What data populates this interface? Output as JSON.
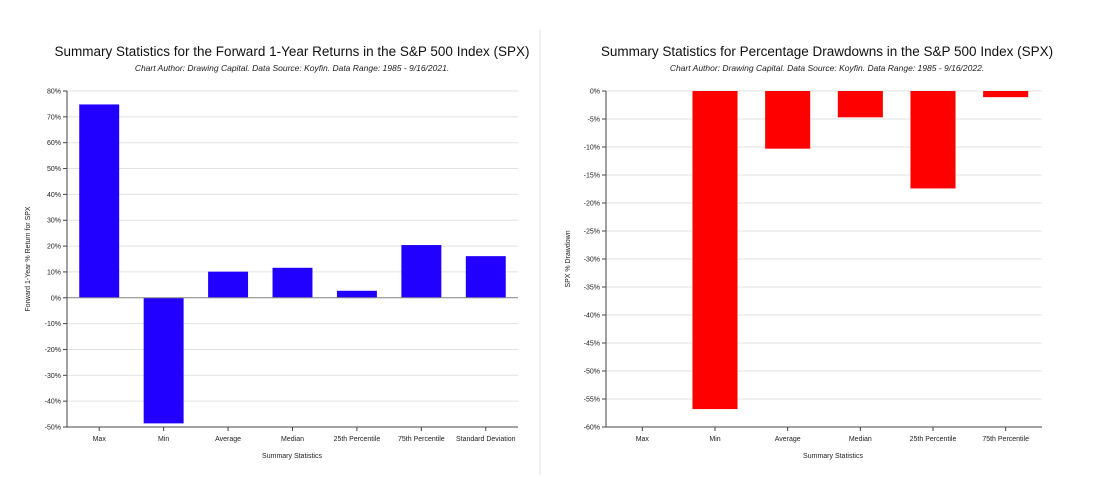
{
  "chart_data": [
    {
      "type": "bar",
      "title": "Summary Statistics for the Forward 1-Year Returns in the S&P 500 Index (SPX)",
      "subtitle": "Chart Author: Drawing Capital. Data Source: Koyfin. Data Range: 1985 - 9/16/2021.",
      "xlabel": "Summary Statistics",
      "ylabel": "Forward 1-Year % Return for SPX",
      "categories": [
        "Max",
        "Min",
        "Average",
        "Median",
        "25th Percentile",
        "75th Percentile",
        "Standard Deviation"
      ],
      "values": [
        74.8,
        -48.6,
        10.1,
        11.6,
        2.7,
        20.4,
        16.1
      ],
      "ylim": [
        -50,
        80
      ],
      "yticks": [
        80,
        70,
        60,
        50,
        40,
        30,
        20,
        10,
        0,
        -10,
        -20,
        -30,
        -40,
        -50
      ],
      "ytick_labels": [
        "80%",
        "70%",
        "60%",
        "50%",
        "40%",
        "30%",
        "20%",
        "10%",
        "0%",
        "-10%",
        "-20%",
        "-30%",
        "-40%",
        "-50%"
      ],
      "color": "#2200ff",
      "grid": true
    },
    {
      "type": "bar",
      "title": "Summary Statistics for Percentage Drawdowns in the S&P 500 Index (SPX)",
      "subtitle": "Chart Author: Drawing Capital. Data Source: Koyfin. Data Range: 1985 - 9/16/2022.",
      "xlabel": "Summary Statistics",
      "ylabel": "SPX % Drawdown",
      "categories": [
        "Max",
        "Min",
        "Average",
        "Median",
        "25th Percentile",
        "75th Percentile"
      ],
      "values": [
        0,
        -56.8,
        -10.3,
        -4.7,
        -17.4,
        -1.1
      ],
      "ylim": [
        -60,
        0
      ],
      "yticks": [
        0,
        -5,
        -10,
        -15,
        -20,
        -25,
        -30,
        -35,
        -40,
        -45,
        -50,
        -55,
        -60
      ],
      "ytick_labels": [
        "0%",
        "-5%",
        "-10%",
        "-15%",
        "-20%",
        "-25%",
        "-30%",
        "-35%",
        "-40%",
        "-45%",
        "-50%",
        "-55%",
        "-60%"
      ],
      "color": "#ff0000",
      "grid": true
    }
  ]
}
